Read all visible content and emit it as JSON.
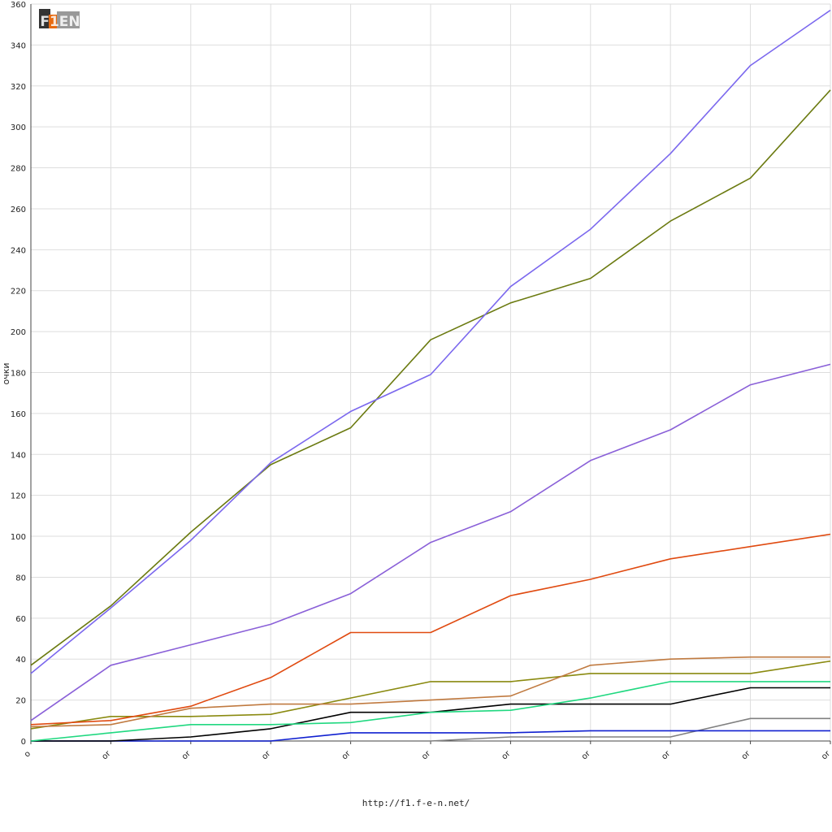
{
  "footer": {
    "url": "http://f1.f-e-n.net/"
  },
  "logo": {
    "text": "F1EN"
  },
  "chart_data": {
    "type": "line",
    "title": "",
    "xlabel": "",
    "ylabel": "очки",
    "ylim": [
      0,
      360
    ],
    "y_ticks": [
      0,
      20,
      40,
      60,
      80,
      100,
      120,
      140,
      160,
      180,
      200,
      220,
      240,
      260,
      280,
      300,
      320,
      340,
      360
    ],
    "x": [
      0,
      1,
      2,
      3,
      4,
      5,
      6,
      7,
      8,
      9,
      10
    ],
    "x_tick_labels": [
      "o",
      "or",
      "or",
      "or",
      "or",
      "or",
      "or",
      "or",
      "or",
      "or",
      "or"
    ],
    "grid": true,
    "legend": "none",
    "series": [
      {
        "color": "#7b68ee",
        "values": [
          33,
          65,
          98,
          136,
          161,
          179,
          222,
          250,
          287,
          330,
          357
        ]
      },
      {
        "color": "#6b7a10",
        "values": [
          37,
          66,
          102,
          135,
          153,
          196,
          214,
          226,
          254,
          275,
          318
        ]
      },
      {
        "color": "#8a60d8",
        "values": [
          10,
          37,
          47,
          57,
          72,
          97,
          112,
          137,
          152,
          174,
          184
        ]
      },
      {
        "color": "#e04a10",
        "values": [
          8,
          10,
          17,
          31,
          53,
          53,
          71,
          79,
          89,
          95,
          101
        ]
      },
      {
        "color": "#c07a40",
        "values": [
          7,
          8,
          16,
          18,
          18,
          20,
          22,
          37,
          40,
          41,
          41
        ]
      },
      {
        "color": "#8a8a10",
        "values": [
          6,
          12,
          12,
          13,
          21,
          29,
          29,
          33,
          33,
          33,
          39
        ]
      },
      {
        "color": "#20d880",
        "values": [
          0,
          4,
          8,
          8,
          9,
          14,
          15,
          21,
          29,
          29,
          29
        ]
      },
      {
        "color": "#000000",
        "values": [
          0,
          0,
          2,
          6,
          14,
          14,
          18,
          18,
          18,
          26,
          26
        ]
      },
      {
        "color": "#1020d0",
        "values": [
          0,
          0,
          0,
          0,
          4,
          4,
          4,
          5,
          5,
          5,
          5
        ]
      },
      {
        "color": "#808080",
        "values": [
          0,
          0,
          0,
          0,
          0,
          0,
          2,
          2,
          2,
          11,
          11
        ]
      }
    ]
  }
}
